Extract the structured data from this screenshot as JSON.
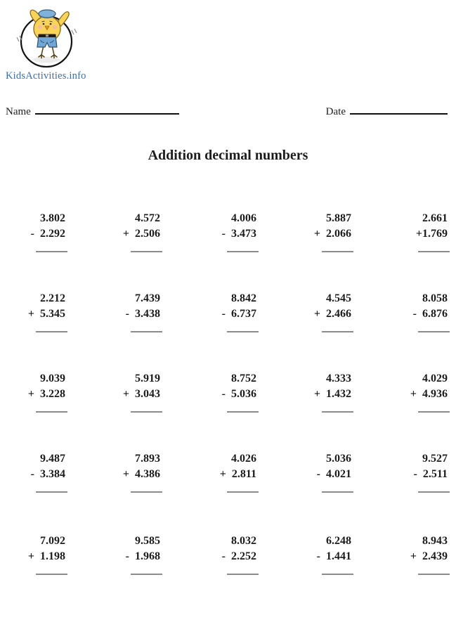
{
  "brand": {
    "site": "KidsActivities.info",
    "link_color": "#3a6bbf"
  },
  "fields": {
    "name_label": "Name",
    "date_label": "Date"
  },
  "title": "Addition decimal numbers",
  "logo": {
    "description": "chick-jumping-rope-logo"
  },
  "colors": {
    "ink": "#1c1c1c",
    "answer_line": "#8c8c8c",
    "chick_yellow": "#f9d456",
    "chick_blue": "#7fb2d9",
    "brand_blue": "#3a6bbf"
  },
  "worksheet": {
    "rows": [
      [
        {
          "top": "3.802",
          "second": "- 2.292"
        },
        {
          "top": "4.572",
          "second": "+ 2.506"
        },
        {
          "top": "4.006",
          "second": "- 3.473"
        },
        {
          "top": "5.887",
          "second": "+ 2.066"
        },
        {
          "top": "2.661",
          "second": "+1.769"
        }
      ],
      [
        {
          "top": "2.212",
          "second": "+ 5.345"
        },
        {
          "top": "7.439",
          "second": "- 3.438"
        },
        {
          "top": "8.842",
          "second": "- 6.737"
        },
        {
          "top": "4.545",
          "second": "+ 2.466"
        },
        {
          "top": "8.058",
          "second": "- 6.876"
        }
      ],
      [
        {
          "top": "9.039",
          "second": "+ 3.228"
        },
        {
          "top": "5.919",
          "second": "+ 3.043"
        },
        {
          "top": "8.752",
          "second": "- 5.036"
        },
        {
          "top": "4.333",
          "second": "+ 1.432"
        },
        {
          "top": "4.029",
          "second": "+ 4.936"
        }
      ],
      [
        {
          "top": "9.487",
          "second": "- 3.384"
        },
        {
          "top": "7.893",
          "second": "+ 4.386"
        },
        {
          "top": "4.026",
          "second": "+ 2.811"
        },
        {
          "top": "5.036",
          "second": "- 4.021"
        },
        {
          "top": "9.527",
          "second": "- 2.511"
        }
      ],
      [
        {
          "top": "7.092",
          "second": "+ 1.198"
        },
        {
          "top": "9.585",
          "second": "- 1.968"
        },
        {
          "top": "8.032",
          "second": "- 2.252"
        },
        {
          "top": "6.248",
          "second": "- 1.441"
        },
        {
          "top": "8.943",
          "second": "+ 2.439"
        }
      ]
    ]
  }
}
